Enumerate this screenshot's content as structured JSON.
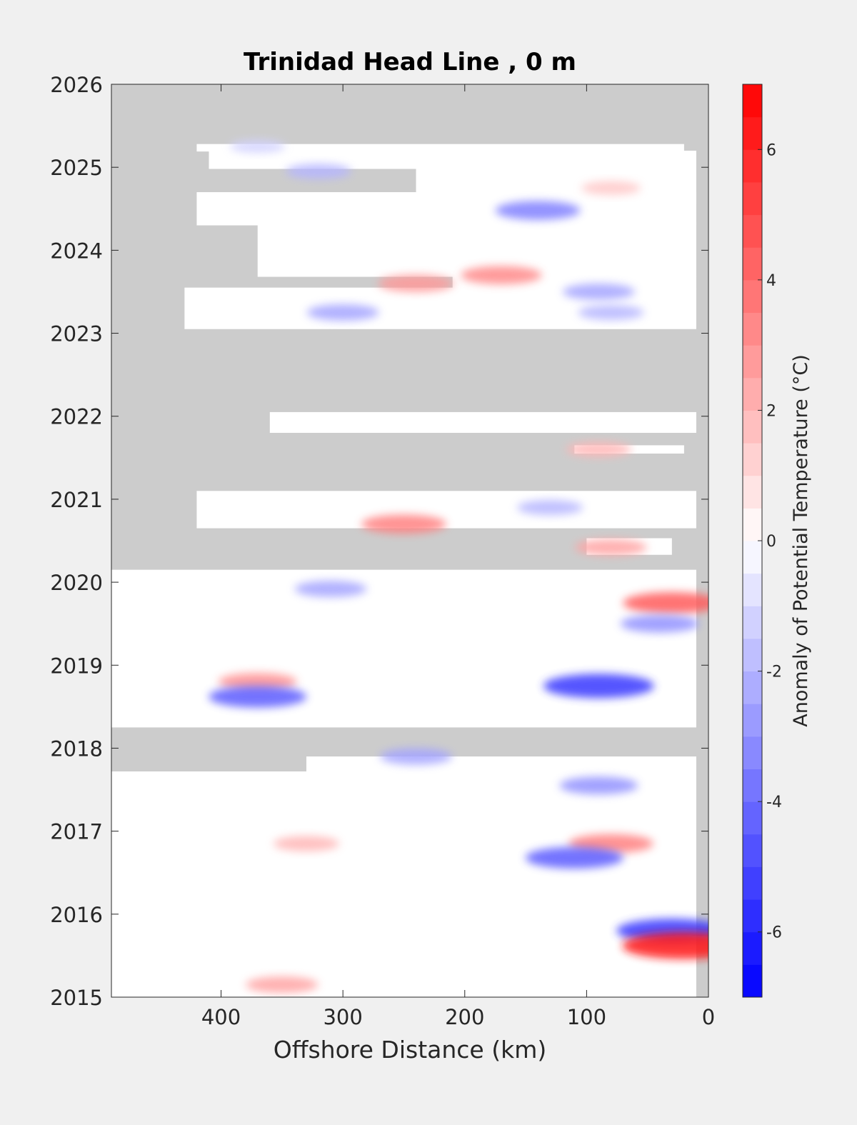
{
  "chart_data": {
    "type": "heatmap",
    "title": "Trinidad Head Line , 0 m",
    "xlabel": "Offshore Distance (km)",
    "ylabel": "",
    "x_range": [
      490,
      0
    ],
    "x_direction": "reversed",
    "y_range": [
      2015,
      2026
    ],
    "x_ticks": [
      400,
      300,
      200,
      100,
      0
    ],
    "y_ticks": [
      2015,
      2016,
      2017,
      2018,
      2019,
      2020,
      2021,
      2022,
      2023,
      2024,
      2025,
      2026
    ],
    "colorbar": {
      "label": "Anomaly of Potential Temperature (°C)",
      "range": [
        -7,
        7
      ],
      "ticks": [
        -6,
        -4,
        -2,
        0,
        2,
        4,
        6
      ],
      "levels": 28,
      "colormap": "blue-white-red",
      "low_color": "#0000ff",
      "mid_color": "#ffffff",
      "high_color": "#ff0000"
    },
    "no_data_color": "#cccccc",
    "grid": false,
    "data_rows": [
      {
        "y0": 2025.19,
        "y1": 2025.28,
        "x0": 420,
        "x1": 20
      },
      {
        "y0": 2024.98,
        "y1": 2025.2,
        "x0": 410,
        "x1": 10
      },
      {
        "y0": 2024.55,
        "y1": 2024.98,
        "x0": 240,
        "x1": 10
      },
      {
        "y0": 2024.3,
        "y1": 2024.7,
        "x0": 420,
        "x1": 10
      },
      {
        "y0": 2023.68,
        "y1": 2024.35,
        "x0": 370,
        "x1": 10
      },
      {
        "y0": 2023.52,
        "y1": 2023.7,
        "x0": 210,
        "x1": 10
      },
      {
        "y0": 2023.05,
        "y1": 2023.55,
        "x0": 430,
        "x1": 10
      },
      {
        "y0": 2021.8,
        "y1": 2022.05,
        "x0": 360,
        "x1": 10
      },
      {
        "y0": 2021.55,
        "y1": 2021.65,
        "x0": 110,
        "x1": 20
      },
      {
        "y0": 2020.65,
        "y1": 2021.1,
        "x0": 420,
        "x1": 10
      },
      {
        "y0": 2020.33,
        "y1": 2020.53,
        "x0": 100,
        "x1": 30
      },
      {
        "y0": 2018.25,
        "y1": 2020.15,
        "x0": 490,
        "x1": 10
      },
      {
        "y0": 2017.7,
        "y1": 2017.9,
        "x0": 330,
        "x1": 10
      },
      {
        "y0": 2015.0,
        "y1": 2017.72,
        "x0": 490,
        "x1": 10
      }
    ],
    "anomalies": [
      {
        "x": 370,
        "y": 2025.25,
        "value": -1.2
      },
      {
        "x": 320,
        "y": 2024.95,
        "value": -2.0
      },
      {
        "x": 140,
        "y": 2024.48,
        "value": -3.5
      },
      {
        "x": 80,
        "y": 2024.75,
        "value": 1.5
      },
      {
        "x": 170,
        "y": 2023.7,
        "value": 3.2
      },
      {
        "x": 240,
        "y": 2023.6,
        "value": 2.8
      },
      {
        "x": 90,
        "y": 2023.5,
        "value": -2.5
      },
      {
        "x": 300,
        "y": 2023.25,
        "value": -2.5
      },
      {
        "x": 80,
        "y": 2023.25,
        "value": -2.0
      },
      {
        "x": 90,
        "y": 2021.6,
        "value": 2.0
      },
      {
        "x": 130,
        "y": 2020.9,
        "value": -2.0
      },
      {
        "x": 250,
        "y": 2020.7,
        "value": 3.5
      },
      {
        "x": 80,
        "y": 2020.42,
        "value": 2.5
      },
      {
        "x": 310,
        "y": 2019.92,
        "value": -2.5
      },
      {
        "x": 30,
        "y": 2019.75,
        "value": 4.5
      },
      {
        "x": 40,
        "y": 2019.5,
        "value": -3.0
      },
      {
        "x": 370,
        "y": 2018.8,
        "value": 3.0
      },
      {
        "x": 370,
        "y": 2018.62,
        "value": -4.5
      },
      {
        "x": 90,
        "y": 2018.75,
        "value": -5.5
      },
      {
        "x": 240,
        "y": 2017.9,
        "value": -2.5
      },
      {
        "x": 90,
        "y": 2017.55,
        "value": -3.0
      },
      {
        "x": 330,
        "y": 2016.85,
        "value": 2.0
      },
      {
        "x": 80,
        "y": 2016.85,
        "value": 3.5
      },
      {
        "x": 110,
        "y": 2016.68,
        "value": -4.5
      },
      {
        "x": 30,
        "y": 2015.8,
        "value": -5.5
      },
      {
        "x": 20,
        "y": 2015.62,
        "value": 6.5
      },
      {
        "x": 350,
        "y": 2015.15,
        "value": 2.5
      }
    ]
  }
}
